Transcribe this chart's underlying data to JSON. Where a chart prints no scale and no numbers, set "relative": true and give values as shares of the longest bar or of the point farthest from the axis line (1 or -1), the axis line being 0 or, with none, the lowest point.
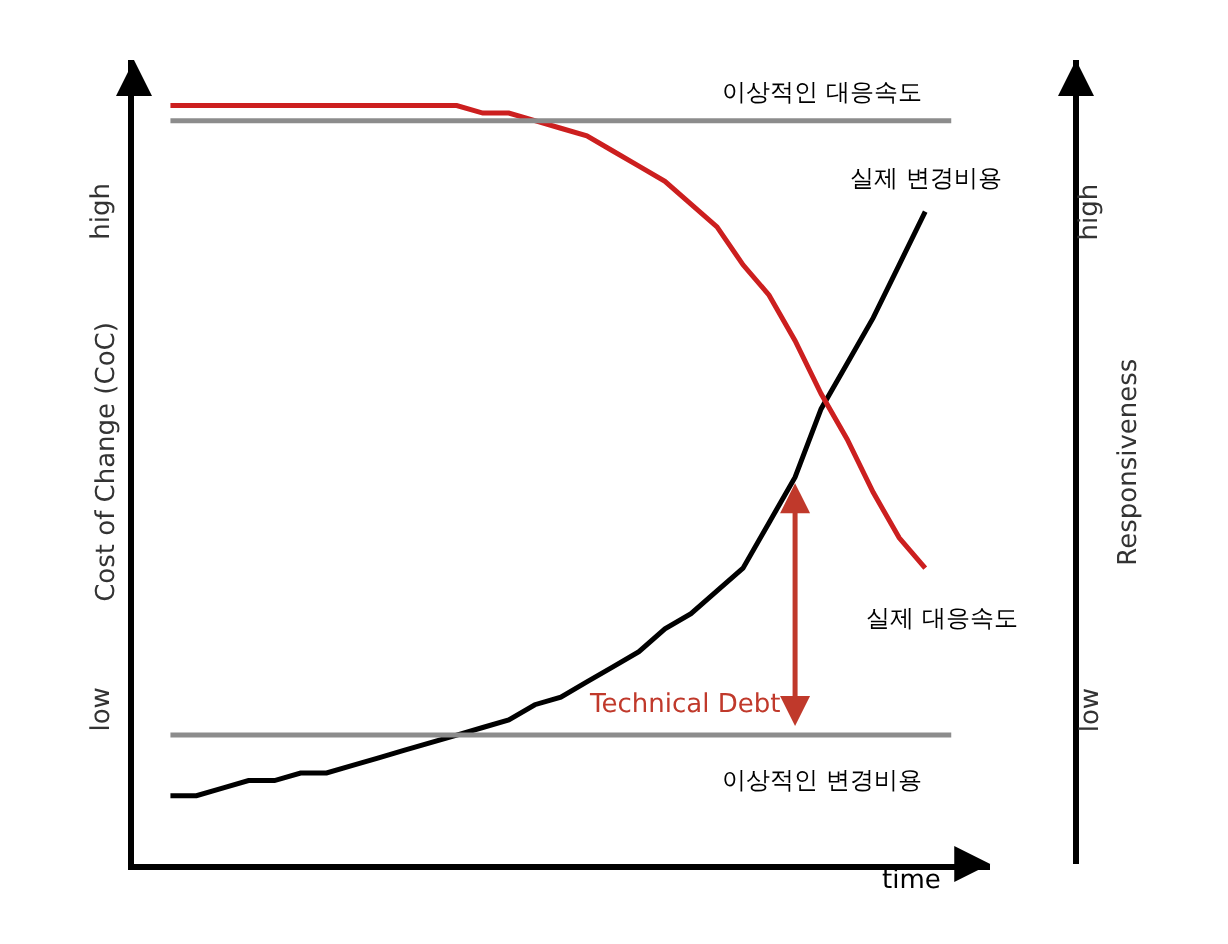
{
  "chart_data": {
    "type": "line",
    "relative": true,
    "xlabel": "time",
    "ylabel": "Cost of Change (CoC)",
    "y2label": "Responsiveness",
    "categories": [
      null,
      null,
      null,
      null,
      null,
      null,
      null,
      null,
      null,
      null,
      null,
      null,
      null,
      null,
      null,
      null,
      null,
      null,
      null,
      null,
      null,
      null,
      null,
      null,
      null,
      null,
      null,
      null,
      null,
      null,
      null
    ],
    "series": [
      {
        "name": "실제 변경비용",
        "color": "#000000",
        "values": [
          0.09,
          0.09,
          0.1,
          0.11,
          0.11,
          0.12,
          0.12,
          0.13,
          0.14,
          0.15,
          0.16,
          0.17,
          0.18,
          0.19,
          0.21,
          0.22,
          0.24,
          0.26,
          0.28,
          0.31,
          0.33,
          0.36,
          0.39,
          0.45,
          0.51,
          0.6,
          0.66,
          0.72,
          0.79,
          0.86,
          null
        ]
      },
      {
        "name": "실제 대응속도",
        "color": "#cc1f1f",
        "values": [
          1.0,
          1.0,
          1.0,
          1.0,
          1.0,
          1.0,
          1.0,
          1.0,
          1.0,
          1.0,
          1.0,
          1.0,
          0.99,
          0.99,
          0.98,
          0.97,
          0.96,
          0.94,
          0.92,
          0.9,
          0.87,
          0.84,
          0.79,
          0.75,
          0.69,
          0.62,
          0.56,
          0.49,
          0.43,
          0.39,
          null
        ]
      },
      {
        "name": "이상적인 대응속도",
        "color": "#8c8c8c",
        "values": [
          0.98,
          0.98,
          0.98,
          0.98,
          0.98,
          0.98,
          0.98,
          0.98,
          0.98,
          0.98,
          0.98,
          0.98,
          0.98,
          0.98,
          0.98,
          0.98,
          0.98,
          0.98,
          0.98,
          0.98,
          0.98,
          0.98,
          0.98,
          0.98,
          0.98,
          0.98,
          0.98,
          0.98,
          0.98,
          0.98,
          0.98
        ]
      },
      {
        "name": "이상적인 변경비용",
        "color": "#8c8c8c",
        "values": [
          0.17,
          0.17,
          0.17,
          0.17,
          0.17,
          0.17,
          0.17,
          0.17,
          0.17,
          0.17,
          0.17,
          0.17,
          0.17,
          0.17,
          0.17,
          0.17,
          0.17,
          0.17,
          0.17,
          0.17,
          0.17,
          0.17,
          0.17,
          0.17,
          0.17,
          0.17,
          0.17,
          0.17,
          0.17,
          0.17,
          0.17
        ]
      }
    ],
    "annotations": [
      "Technical Debt",
      "low",
      "high",
      "low",
      "high"
    ],
    "tick_labels": false,
    "legend": false,
    "marker": "none",
    "line_style": "solid"
  }
}
